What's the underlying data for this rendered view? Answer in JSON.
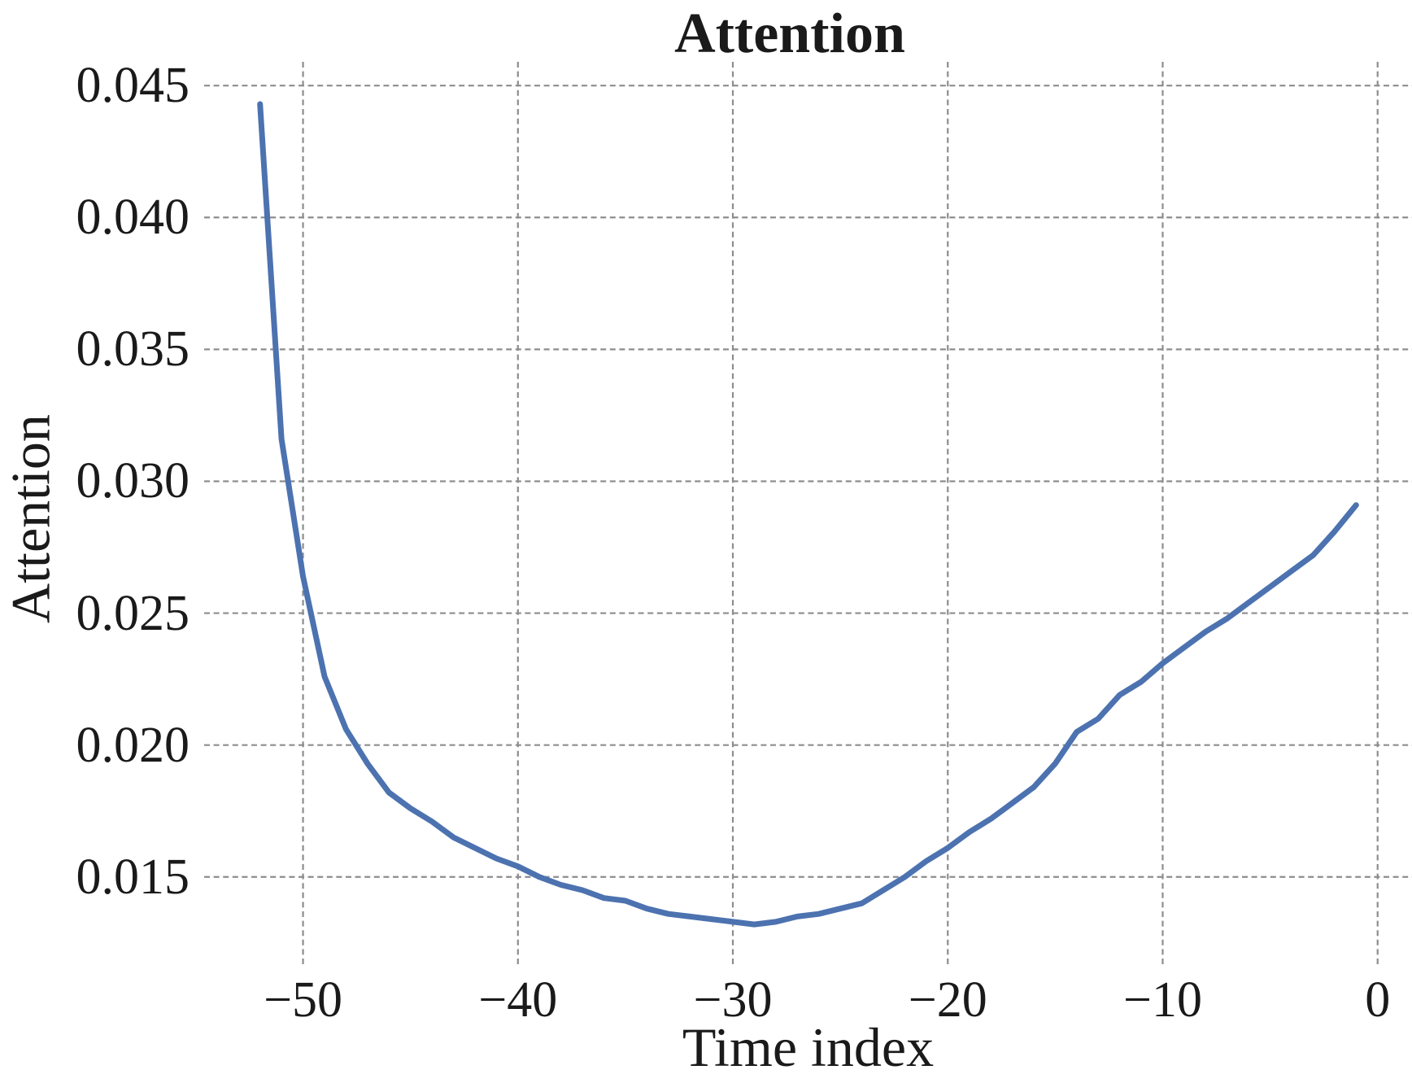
{
  "chart_data": {
    "type": "line",
    "title": "Attention",
    "xlabel": "Time index",
    "ylabel": "Attention",
    "x": [
      -52,
      -51,
      -50,
      -49,
      -48,
      -47,
      -46,
      -45,
      -44,
      -43,
      -42,
      -41,
      -40,
      -39,
      -38,
      -37,
      -36,
      -35,
      -34,
      -33,
      -32,
      -31,
      -30,
      -29,
      -28,
      -27,
      -26,
      -25,
      -24,
      -23,
      -22,
      -21,
      -20,
      -19,
      -18,
      -17,
      -16,
      -15,
      -14,
      -13,
      -12,
      -11,
      -10,
      -9,
      -8,
      -7,
      -6,
      -5,
      -4,
      -3,
      -2,
      -1
    ],
    "y": [
      0.0443,
      0.0316,
      0.0264,
      0.0226,
      0.0206,
      0.0193,
      0.0182,
      0.0176,
      0.0171,
      0.0165,
      0.0161,
      0.0157,
      0.0154,
      0.015,
      0.0147,
      0.0145,
      0.0142,
      0.0141,
      0.0138,
      0.0136,
      0.0135,
      0.0134,
      0.0133,
      0.0132,
      0.0133,
      0.0135,
      0.0136,
      0.0138,
      0.014,
      0.0145,
      0.015,
      0.0156,
      0.0161,
      0.0167,
      0.0172,
      0.0178,
      0.0184,
      0.0193,
      0.0205,
      0.021,
      0.0219,
      0.0224,
      0.0231,
      0.0237,
      0.0243,
      0.0248,
      0.0254,
      0.026,
      0.0266,
      0.0272,
      0.0281,
      0.0291
    ],
    "xlim": [
      -54.6,
      1.6
    ],
    "ylim": [
      0.0116,
      0.0459
    ],
    "xticks": [
      -50,
      -40,
      -30,
      -20,
      -10,
      0
    ],
    "xtick_labels": [
      "−50",
      "−40",
      "−30",
      "−20",
      "−10",
      "0"
    ],
    "yticks": [
      0.015,
      0.02,
      0.025,
      0.03,
      0.035,
      0.04,
      0.045
    ],
    "ytick_labels": [
      "0.015",
      "0.020",
      "0.025",
      "0.030",
      "0.035",
      "0.040",
      "0.045"
    ],
    "grid": true,
    "legend": "none",
    "line_color": "#4C72B0",
    "grid_color": "#8d8d8d",
    "background_color": "#ffffff",
    "text_color": "#1a1a1a"
  }
}
